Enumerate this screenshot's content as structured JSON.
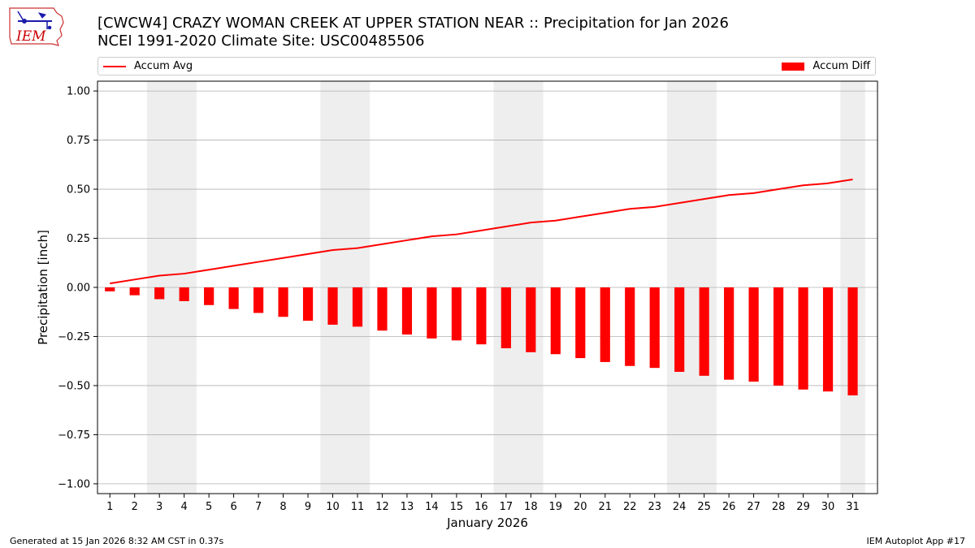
{
  "header": {
    "title_line1": "[CWCW4] CRAZY WOMAN CREEK AT UPPER STATION NEAR :: Precipitation for Jan 2026",
    "title_line2": "NCEI 1991-2020 Climate Site: USC00485506"
  },
  "logo": {
    "text": "IEM",
    "color": "#cc0000",
    "icon_color": "#1a1aaa"
  },
  "legend": {
    "avg_label": "Accum Avg",
    "diff_label": "Accum Diff",
    "placement": "top"
  },
  "footer": {
    "left": "Generated at 15 Jan 2026 8:32 AM CST in 0.37s",
    "right": "IEM Autoplot App #17"
  },
  "colors": {
    "series": "#ff0000",
    "weekend_shade": "#eeeeee",
    "grid": "#b0b0b0"
  },
  "chart_data": {
    "type": "bar",
    "xlabel": "January 2026",
    "ylabel": "Precipitation [inch]",
    "ylim": [
      -1.05,
      1.05
    ],
    "yticks": [
      1.0,
      0.75,
      0.5,
      0.25,
      0.0,
      -0.25,
      -0.5,
      -0.75,
      -1.0
    ],
    "ytick_labels": [
      "1.00",
      "0.75",
      "0.50",
      "0.25",
      "0.00",
      "−0.25",
      "−0.50",
      "−0.75",
      "−1.00"
    ],
    "grid": true,
    "categories": [
      "1",
      "2",
      "3",
      "4",
      "5",
      "6",
      "7",
      "8",
      "9",
      "10",
      "11",
      "12",
      "13",
      "14",
      "15",
      "16",
      "17",
      "18",
      "19",
      "20",
      "21",
      "22",
      "23",
      "24",
      "25",
      "26",
      "27",
      "28",
      "29",
      "30",
      "31"
    ],
    "shaded_days": [
      [
        3,
        4
      ],
      [
        10,
        11
      ],
      [
        17,
        18
      ],
      [
        24,
        25
      ],
      [
        31,
        31
      ]
    ],
    "series": [
      {
        "name": "Accum Avg",
        "type": "line",
        "values": [
          0.02,
          0.04,
          0.06,
          0.07,
          0.09,
          0.11,
          0.13,
          0.15,
          0.17,
          0.19,
          0.2,
          0.22,
          0.24,
          0.26,
          0.27,
          0.29,
          0.31,
          0.33,
          0.34,
          0.36,
          0.38,
          0.4,
          0.41,
          0.43,
          0.45,
          0.47,
          0.48,
          0.5,
          0.52,
          0.53,
          0.55
        ]
      },
      {
        "name": "Accum Diff",
        "type": "bar",
        "values": [
          -0.02,
          -0.04,
          -0.06,
          -0.07,
          -0.09,
          -0.11,
          -0.13,
          -0.15,
          -0.17,
          -0.19,
          -0.2,
          -0.22,
          -0.24,
          -0.26,
          -0.27,
          -0.29,
          -0.31,
          -0.33,
          -0.34,
          -0.36,
          -0.38,
          -0.4,
          -0.41,
          -0.43,
          -0.45,
          -0.47,
          -0.48,
          -0.5,
          -0.52,
          -0.53,
          -0.55
        ]
      }
    ]
  }
}
